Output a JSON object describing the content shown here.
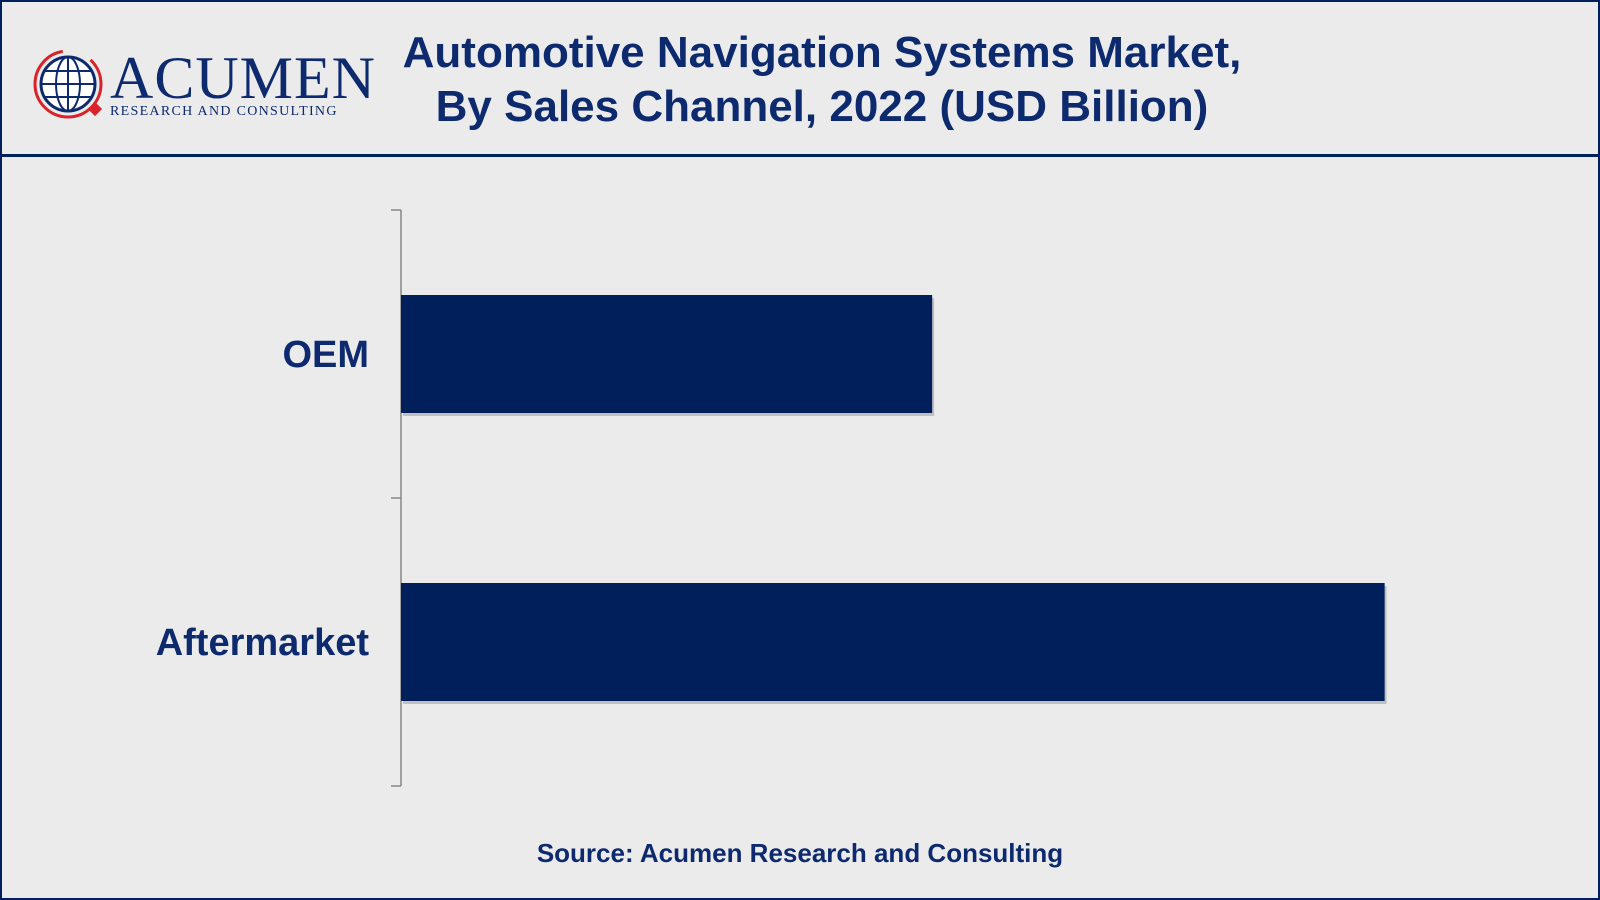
{
  "header": {
    "title_line1": "Automotive Navigation Systems Market,",
    "title_line2": "By Sales Channel, 2022 (USD Billion)"
  },
  "logo": {
    "name": "ACUMEN",
    "tagline": "RESEARCH AND CONSULTING",
    "icon": "globe-icon"
  },
  "colors": {
    "bar": "#001f5b",
    "text": "#0d2a6e",
    "accent": "#d8232a",
    "background": "#ebebeb"
  },
  "chart_data": {
    "type": "bar",
    "orientation": "horizontal",
    "categories": [
      "OEM",
      "Aftermarket"
    ],
    "values": [
      0.54,
      1.0
    ],
    "title": "Automotive Navigation Systems Market, By Sales Channel, 2022 (USD Billion)",
    "xlabel": "",
    "ylabel": "",
    "xlim": [
      0,
      1.1
    ],
    "grid": false,
    "legend": "none"
  },
  "footer": {
    "source": "Source: Acumen Research and Consulting"
  }
}
